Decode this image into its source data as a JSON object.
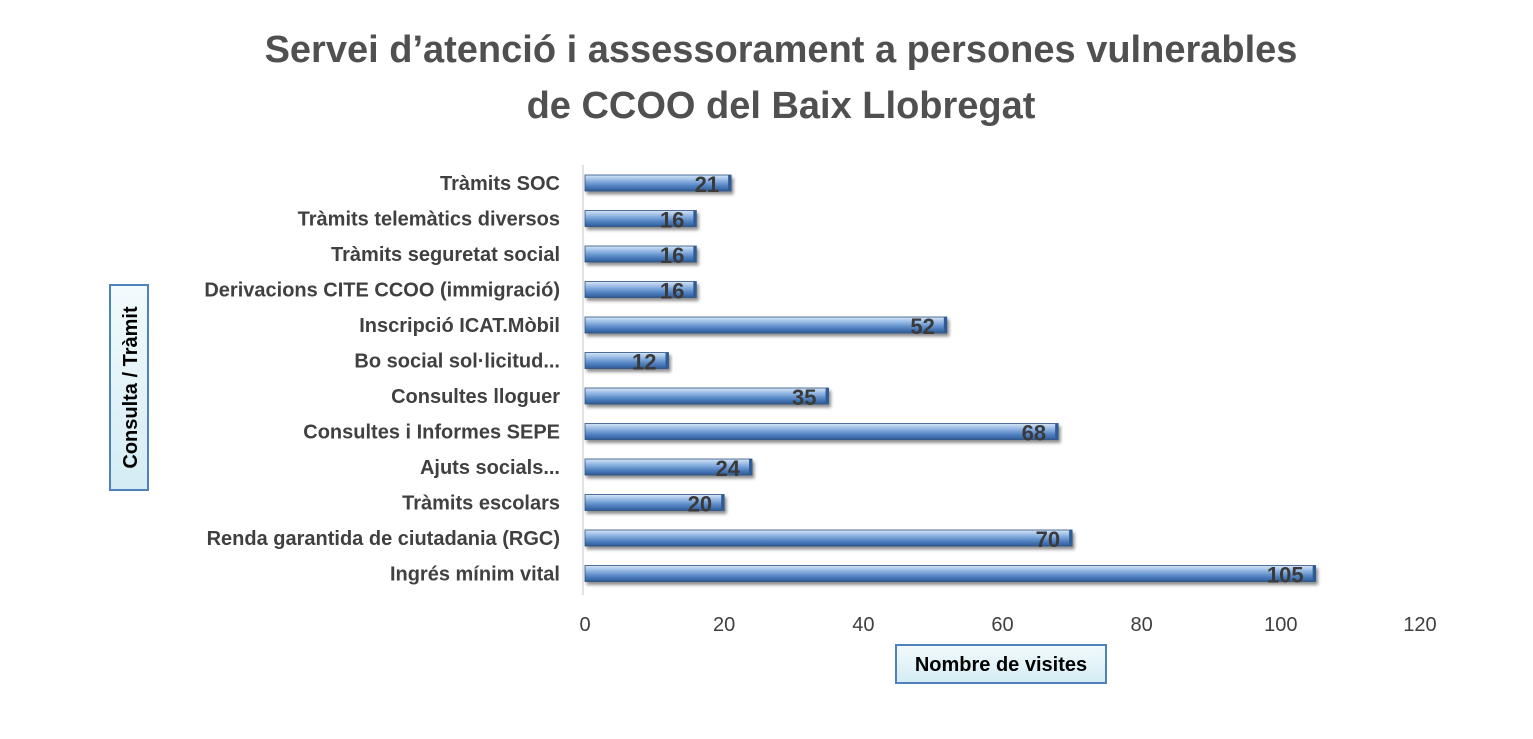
{
  "chart_data": {
    "type": "bar",
    "orientation": "horizontal",
    "title": "Servei d’atenció i assessorament a persones vulnerables de CCOO del Baix Llobregat",
    "title_lines": [
      "Servei d’atenció i assessorament a persones vulnerables",
      "de CCOO del Baix Llobregat"
    ],
    "xlabel": "Nombre de visites",
    "ylabel": "Consulta / Tràmit",
    "xlim": [
      0,
      120
    ],
    "xticks": [
      0,
      20,
      40,
      60,
      80,
      100,
      120
    ],
    "grid": false,
    "legend": "none",
    "categories": [
      "Tràmits SOC",
      "Tràmits telemàtics diversos",
      "Tràmits seguretat social",
      "Derivacions CITE CCOO (immigració)",
      "Inscripció ICAT.Mòbil",
      "Bo social sol·licitud...",
      "Consultes lloguer",
      "Consultes i Informes SEPE",
      "Ajuts socials...",
      "Tràmits escolars",
      "Renda garantida de ciutadania (RGC)",
      "Ingrés mínim vital"
    ],
    "values": [
      21,
      16,
      16,
      16,
      52,
      12,
      35,
      68,
      24,
      20,
      70,
      105
    ],
    "colors": {
      "bar_light": "#a9c8ea",
      "bar_mid": "#5b8ecd",
      "bar_dark": "#2f5c96",
      "axis_title_fill": "#daeef3",
      "axis_title_border": "#4f81bd"
    }
  }
}
